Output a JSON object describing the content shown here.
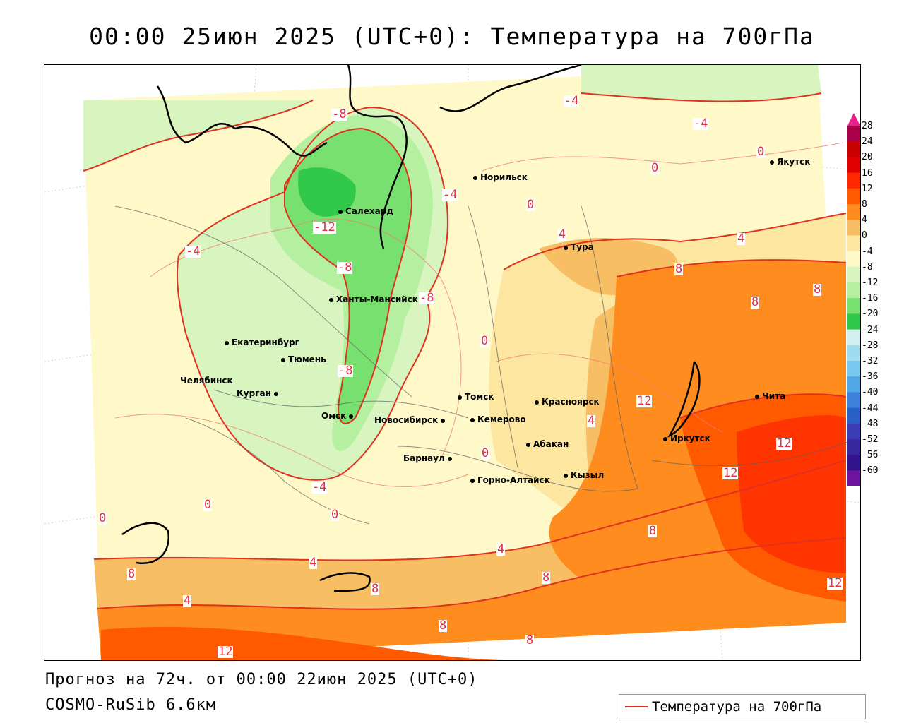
{
  "title": "00:00 25июн 2025 (UTC+0): Температура на 700гПа",
  "footer": {
    "forecast": "Прогноз на 72ч. от 00:00 22июн 2025 (UTC+0)",
    "model": "COSMO-RuSib 6.6км"
  },
  "legend": {
    "line_label": "Температура на 700гПа",
    "line_color": "#e03020"
  },
  "scale": {
    "ticks": [
      "28",
      "24",
      "20",
      "16",
      "12",
      "8",
      "4",
      "0",
      "-4",
      "-8",
      "-12",
      "-16",
      "-20",
      "-24",
      "-28",
      "-32",
      "-36",
      "-40",
      "-44",
      "-48",
      "-52",
      "-56",
      "-60"
    ],
    "colors": [
      "#a8004a",
      "#c80000",
      "#e00000",
      "#ff2800",
      "#ff5a00",
      "#ff8c1e",
      "#f7be64",
      "#fce6a0",
      "#fff8c8",
      "#d8f5c0",
      "#b4f0a0",
      "#78e06e",
      "#32c84a",
      "#d2f0f0",
      "#a0dcf0",
      "#78c8f0",
      "#50a8e8",
      "#3c82dc",
      "#2860c8",
      "#3c3cb4",
      "#3828a0",
      "#32148c",
      "#6e14a0"
    ]
  },
  "cities": [
    {
      "name": "Норильск"
    },
    {
      "name": "Якутск"
    },
    {
      "name": "Салехард"
    },
    {
      "name": "Тура"
    },
    {
      "name": "Ханты-Мансийск"
    },
    {
      "name": "Екатеринбург"
    },
    {
      "name": "Тюмень"
    },
    {
      "name": "Челябинск"
    },
    {
      "name": "Курган"
    },
    {
      "name": "Омск"
    },
    {
      "name": "Томск"
    },
    {
      "name": "Красноярск"
    },
    {
      "name": "Новосибирск"
    },
    {
      "name": "Кемерово"
    },
    {
      "name": "Абакан"
    },
    {
      "name": "Барнаул"
    },
    {
      "name": "Горно-Алтайск"
    },
    {
      "name": "Кызыл"
    },
    {
      "name": "Иркутск"
    },
    {
      "name": "Чита"
    }
  ],
  "contour_labels": [
    "-8",
    "-4",
    "-4",
    "0",
    "0",
    "0",
    "-12",
    "-4",
    "4",
    "4",
    "8",
    "8",
    "-8",
    "-8",
    "-4",
    "0",
    "8",
    "-8",
    "0",
    "4",
    "12",
    "12",
    "-4",
    "0",
    "0",
    "0",
    "4",
    "4",
    "8",
    "8",
    "8",
    "12",
    "4",
    "8",
    "8",
    "8",
    "12",
    "12"
  ]
}
